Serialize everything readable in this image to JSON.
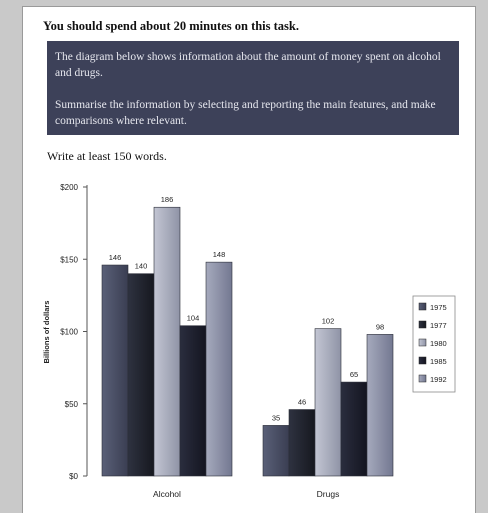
{
  "task": {
    "instruction": "You should spend about 20 minutes on this task.",
    "prompt_line1": "The diagram below shows information about the amount of money spent on alcohol and drugs.",
    "prompt_line2": "Summarise the information by selecting and reporting the main features, and make comparisons where relevant.",
    "word_count_note": "Write at least 150 words."
  },
  "colors": {
    "box_bg": "#3d4159",
    "s1975": "#4a4f63",
    "s1977": "#23262f",
    "s1980": "#a5a8b8",
    "s1985": "#1f2130",
    "s1992": "#8d92a7"
  },
  "chart_data": {
    "type": "bar",
    "title": "",
    "xlabel": "",
    "ylabel": "Billions of dollars",
    "categories": [
      "Alcohol",
      "Drugs"
    ],
    "ylim": [
      0,
      200
    ],
    "yticks": [
      "$0",
      "$50",
      "$100",
      "$150",
      "$200"
    ],
    "ytick_values": [
      0,
      50,
      100,
      150,
      200
    ],
    "legend_position": "right",
    "series": [
      {
        "name": "1975",
        "values": [
          146,
          35
        ],
        "labels": [
          "146",
          "35"
        ]
      },
      {
        "name": "1977",
        "values": [
          140,
          46
        ],
        "labels": [
          "140",
          "46"
        ]
      },
      {
        "name": "1980",
        "values": [
          186,
          102
        ],
        "labels": [
          "186",
          "102"
        ]
      },
      {
        "name": "1985",
        "values": [
          104,
          65
        ],
        "labels": [
          "104",
          "65"
        ]
      },
      {
        "name": "1992",
        "values": [
          148,
          98
        ],
        "labels": [
          "148",
          "98"
        ]
      }
    ]
  }
}
